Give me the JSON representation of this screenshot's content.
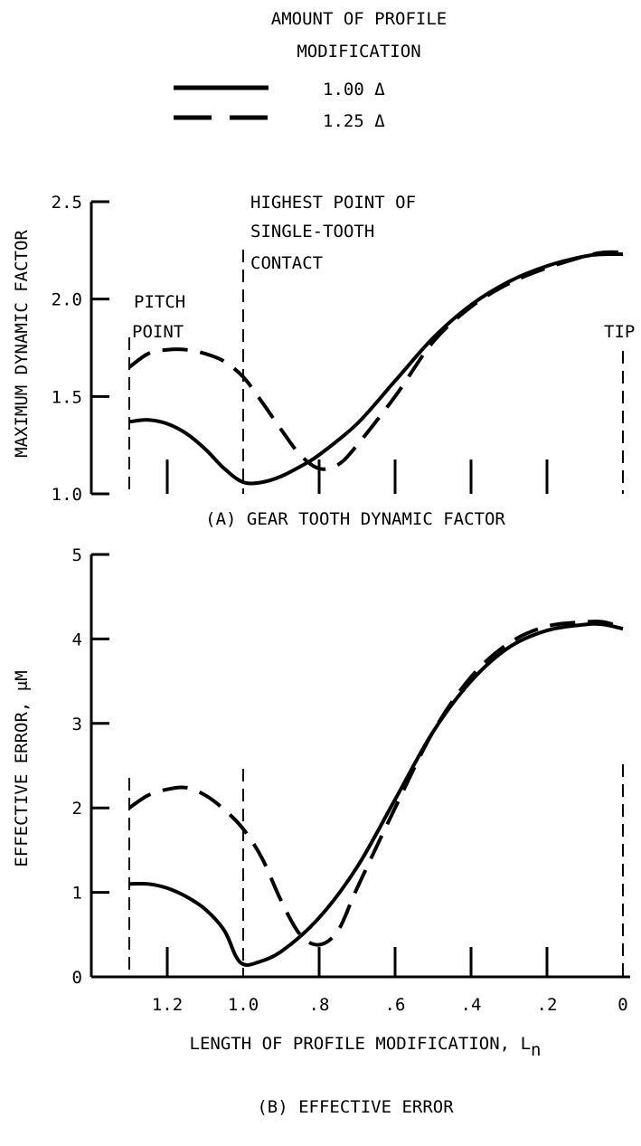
{
  "legend": {
    "title_line1": "AMOUNT OF PROFILE",
    "title_line2": "MODIFICATION",
    "entries": [
      {
        "label": "1.00 Δ",
        "style": "solid"
      },
      {
        "label": "1.25 Δ",
        "style": "dashed"
      }
    ]
  },
  "colors": {
    "line": "#000000",
    "background": "#ffffff"
  },
  "chart_data": [
    {
      "type": "line",
      "id": "a",
      "title": "(A) GEAR TOOTH DYNAMIC FACTOR",
      "xlabel": "",
      "ylabel": "MAXIMUM DYNAMIC FACTOR",
      "xlim": [
        1.36,
        -0.02
      ],
      "x_reversed": true,
      "ylim": [
        1.0,
        2.5
      ],
      "yticks": [
        "1.0",
        "1.5",
        "2.0",
        "2.5"
      ],
      "xtick_values": [
        1.2,
        1.0,
        0.8,
        0.6,
        0.4,
        0.2,
        0.0
      ],
      "xtick_labels_shown": false,
      "grid": false,
      "legend_position": "top-center (shared)",
      "annotations": [
        {
          "x": 1.3,
          "lines": [
            "PITCH",
            "POINT"
          ]
        },
        {
          "x": 1.0,
          "lines": [
            "HIGHEST POINT OF",
            "SINGLE-TOOTH",
            "CONTACT"
          ]
        },
        {
          "x": 0.0,
          "lines": [
            "TIP"
          ]
        }
      ],
      "series": [
        {
          "name": "1.00 Δ",
          "style": "solid",
          "x": [
            1.3,
            1.25,
            1.2,
            1.15,
            1.1,
            1.05,
            1.0,
            0.95,
            0.9,
            0.85,
            0.8,
            0.7,
            0.6,
            0.5,
            0.4,
            0.3,
            0.2,
            0.1,
            0.05,
            0.0
          ],
          "y": [
            1.37,
            1.38,
            1.36,
            1.31,
            1.23,
            1.13,
            1.06,
            1.06,
            1.09,
            1.14,
            1.2,
            1.36,
            1.58,
            1.8,
            1.97,
            2.09,
            2.17,
            2.22,
            2.23,
            2.23
          ]
        },
        {
          "name": "1.25 Δ",
          "style": "dashed",
          "x": [
            1.3,
            1.25,
            1.2,
            1.15,
            1.1,
            1.05,
            1.0,
            0.95,
            0.9,
            0.85,
            0.8,
            0.75,
            0.7,
            0.6,
            0.5,
            0.4,
            0.3,
            0.2,
            0.1,
            0.05,
            0.0
          ],
          "y": [
            1.65,
            1.72,
            1.74,
            1.74,
            1.72,
            1.68,
            1.6,
            1.47,
            1.33,
            1.2,
            1.13,
            1.15,
            1.25,
            1.5,
            1.78,
            1.96,
            2.08,
            2.16,
            2.22,
            2.24,
            2.24
          ]
        }
      ]
    },
    {
      "type": "line",
      "id": "b",
      "title": "(B) EFFECTIVE ERROR",
      "xlabel": "LENGTH OF PROFILE MODIFICATION, L",
      "xlabel_subscript": "n",
      "ylabel": "EFFECTIVE ERROR, μM",
      "xlim": [
        1.36,
        -0.02
      ],
      "x_reversed": true,
      "ylim": [
        0,
        5
      ],
      "yticks": [
        "0",
        "1",
        "2",
        "3",
        "4",
        "5"
      ],
      "xtick_values": [
        1.2,
        1.0,
        0.8,
        0.6,
        0.4,
        0.2,
        0.0
      ],
      "xticks": [
        "1.2",
        "1.0",
        ".8",
        ".6",
        ".4",
        ".2",
        "0"
      ],
      "grid": false,
      "reference_lines_x": [
        1.3,
        1.0,
        0.0
      ],
      "series": [
        {
          "name": "1.00 Δ",
          "style": "solid",
          "x": [
            1.3,
            1.25,
            1.2,
            1.15,
            1.1,
            1.05,
            1.02,
            1.0,
            0.97,
            0.9,
            0.8,
            0.7,
            0.6,
            0.5,
            0.4,
            0.3,
            0.2,
            0.1,
            0.05,
            0.0
          ],
          "y": [
            1.1,
            1.1,
            1.05,
            0.95,
            0.8,
            0.55,
            0.25,
            0.15,
            0.16,
            0.3,
            0.7,
            1.3,
            2.1,
            2.9,
            3.5,
            3.9,
            4.1,
            4.17,
            4.17,
            4.12
          ]
        },
        {
          "name": "1.25 Δ",
          "style": "dashed",
          "x": [
            1.3,
            1.25,
            1.2,
            1.15,
            1.1,
            1.05,
            1.0,
            0.95,
            0.9,
            0.85,
            0.8,
            0.75,
            0.7,
            0.6,
            0.5,
            0.4,
            0.3,
            0.2,
            0.1,
            0.05,
            0.0
          ],
          "y": [
            2.0,
            2.15,
            2.22,
            2.24,
            2.15,
            1.98,
            1.75,
            1.4,
            0.9,
            0.5,
            0.38,
            0.55,
            1.05,
            2.0,
            2.9,
            3.55,
            3.95,
            4.15,
            4.2,
            4.2,
            4.13
          ]
        }
      ]
    }
  ]
}
